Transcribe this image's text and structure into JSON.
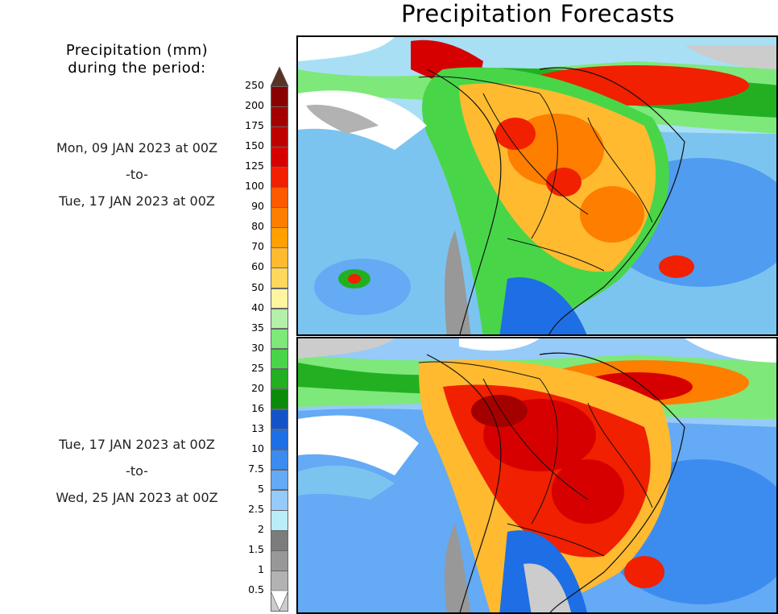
{
  "title": "Precipitation Forecasts",
  "legend": {
    "heading_line1": "Precipitation (mm)",
    "heading_line2": "during the period:"
  },
  "periods": [
    {
      "start": "Mon, 09 JAN 2023 at 00Z",
      "separator": "-to-",
      "end": "Tue, 17 JAN 2023 at 00Z"
    },
    {
      "start": "Tue, 17 JAN 2023 at 00Z",
      "separator": "-to-",
      "end": "Wed, 25 JAN 2023 at 00Z"
    }
  ],
  "colorbar": {
    "labels": [
      "250",
      "200",
      "175",
      "150",
      "125",
      "100",
      "90",
      "80",
      "70",
      "60",
      "50",
      "40",
      "35",
      "30",
      "25",
      "20",
      "16",
      "13",
      "10",
      "7.5",
      "5",
      "2.5",
      "2",
      "1.5",
      "1",
      "0.5"
    ],
    "colors": [
      "#8b0000",
      "#a50000",
      "#bf0000",
      "#d70000",
      "#f02000",
      "#fd5a00",
      "#fe7e00",
      "#ff9f00",
      "#ffba30",
      "#ffd75c",
      "#fff5a0",
      "#b4f0a8",
      "#7ee87a",
      "#48d648",
      "#22b022",
      "#0a8c0a",
      "#1452c8",
      "#1e6ee6",
      "#3c8cf0",
      "#64aaf5",
      "#96caf8",
      "#b9eef9",
      "#7c7c7c",
      "#989898",
      "#b2b2b2",
      "#cccccc"
    ],
    "over_color": "#5a3326",
    "under_color": "#ffffff"
  },
  "maps": [
    {
      "label": "forecast-map-period-1"
    },
    {
      "label": "forecast-map-period-2"
    }
  ]
}
